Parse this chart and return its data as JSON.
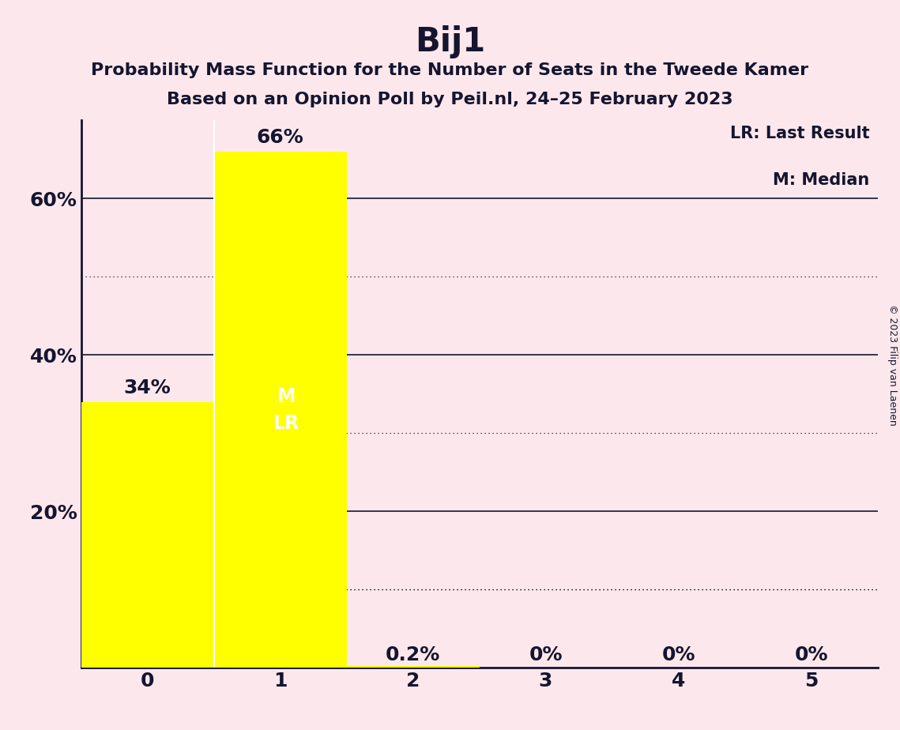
{
  "title": "Bij1",
  "subtitle1": "Probability Mass Function for the Number of Seats in the Tweede Kamer",
  "subtitle2": "Based on an Opinion Poll by Peil.nl, 24–25 February 2023",
  "copyright": "© 2023 Filip van Laenen",
  "categories": [
    0,
    1,
    2,
    3,
    4,
    5
  ],
  "values": [
    0.34,
    0.66,
    0.002,
    0.0,
    0.0,
    0.0
  ],
  "bar_labels": [
    "34%",
    "66%",
    "0.2%",
    "0%",
    "0%",
    "0%"
  ],
  "bar_color": "#ffff00",
  "background_color": "#fce8ec",
  "text_color": "#151530",
  "legend_lr": "LR: Last Result",
  "legend_m": "M: Median",
  "ylim_max": 0.7,
  "solid_yticks": [
    0.2,
    0.4,
    0.6
  ],
  "dotted_yticks": [
    0.1,
    0.3,
    0.5
  ],
  "dotted_yticks_lower": [
    0.1
  ],
  "ytick_labels_pos": [
    0.2,
    0.4,
    0.6
  ],
  "ytick_labels": [
    "20%",
    "40%",
    "60%"
  ],
  "title_fontsize": 30,
  "subtitle_fontsize": 16,
  "bar_label_fontsize": 18,
  "axis_tick_fontsize": 18,
  "legend_fontsize": 15,
  "copyright_fontsize": 9
}
